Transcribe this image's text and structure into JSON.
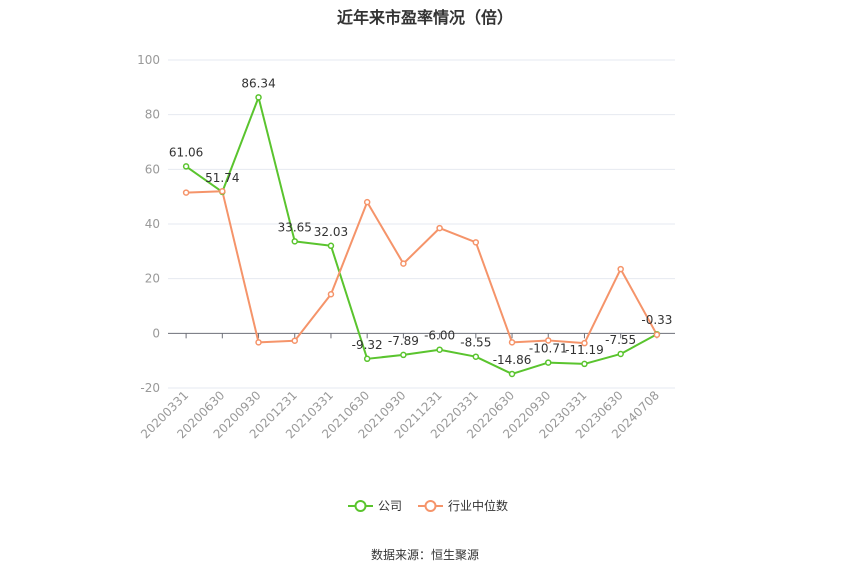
{
  "chart_data": {
    "type": "line",
    "title": "近年来市盈率情况（倍）",
    "categories": [
      "20200331",
      "20200630",
      "20200930",
      "20201231",
      "20210331",
      "20210630",
      "20210930",
      "20211231",
      "20220331",
      "20220630",
      "20220930",
      "20230331",
      "20230630",
      "20240708"
    ],
    "series": [
      {
        "name": "公司",
        "color": "#5ac42e",
        "values": [
          61.06,
          51.74,
          86.34,
          33.65,
          32.03,
          -9.32,
          -7.89,
          -6.0,
          -8.55,
          -14.86,
          -10.71,
          -11.19,
          -7.55,
          -0.33
        ],
        "labels": [
          "61.06",
          "51.74",
          "86.34",
          "33.65",
          "32.03",
          "-9.32",
          "-7.89",
          "-6.00",
          "-8.55",
          "-14.86",
          "-10.71",
          "-11.19",
          "-7.55",
          "-0.33"
        ]
      },
      {
        "name": "行业中位数",
        "color": "#f5946a",
        "values": [
          51.5,
          52.0,
          -3.3,
          -2.7,
          14.3,
          48.0,
          25.5,
          38.5,
          33.3,
          -3.3,
          -2.6,
          -3.6,
          23.5,
          -0.5
        ]
      }
    ],
    "yticks": [
      100,
      80,
      60,
      40,
      20,
      0,
      -20
    ],
    "ylim": [
      -20,
      100
    ],
    "grid": true,
    "legend_position": "bottom-center"
  },
  "source": "数据来源：恒生聚源"
}
